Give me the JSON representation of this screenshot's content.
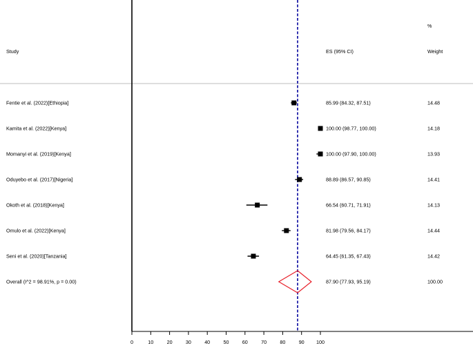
{
  "chart_data": {
    "type": "forest",
    "header": {
      "study": "Study",
      "es": "ES (95% CI)",
      "weight_top": "%",
      "weight": "Weight"
    },
    "studies": [
      {
        "label": "Fentie et al. (2022)[Ethiopia]",
        "es": 85.99,
        "lo": 84.32,
        "hi": 87.51,
        "text": "85.99 (84.32, 87.51)",
        "weight": "14.48"
      },
      {
        "label": "Kamita et al. (2022)[Kenya]",
        "es": 100.0,
        "lo": 98.77,
        "hi": 100.0,
        "text": "100.00 (98.77, 100.00)",
        "weight": "14.18"
      },
      {
        "label": "Momanyi et al. (2019)[Kenya]",
        "es": 100.0,
        "lo": 97.9,
        "hi": 100.0,
        "text": "100.00 (97.90, 100.00)",
        "weight": "13.93"
      },
      {
        "label": "Oduyebo et al. (2017)[Nigeria]",
        "es": 88.89,
        "lo": 86.57,
        "hi": 90.85,
        "text": "88.89 (86.57, 90.85)",
        "weight": "14.41"
      },
      {
        "label": "Okoth et al. (2018)[Kenya]",
        "es": 66.54,
        "lo": 60.71,
        "hi": 71.91,
        "text": "66.54 (60.71, 71.91)",
        "weight": "14.13"
      },
      {
        "label": "Omulo et al. (2022)[Kenya]",
        "es": 81.98,
        "lo": 79.56,
        "hi": 84.17,
        "text": "81.98 (79.56, 84.17)",
        "weight": "14.44"
      },
      {
        "label": "Seni et al. (2020)[Tanzania]",
        "es": 64.45,
        "lo": 61.35,
        "hi": 67.43,
        "text": "64.45 (61.35, 67.43)",
        "weight": "14.42"
      }
    ],
    "overall": {
      "label": "Overall  (I^2 = 98.91%, p = 0.00)",
      "es": 87.9,
      "lo": 77.93,
      "hi": 95.19,
      "text": "87.90 (77.93, 95.19)",
      "weight": "100.00"
    },
    "xticks": [
      0,
      10,
      20,
      30,
      40,
      50,
      60,
      70,
      80,
      90,
      100
    ],
    "xlim": [
      0,
      100
    ],
    "null_line": 0,
    "colors": {
      "overall_line": "#1f1fa8",
      "diamond": "#e8202a",
      "marker": "#000000",
      "separator": "#bcbcbc"
    }
  }
}
